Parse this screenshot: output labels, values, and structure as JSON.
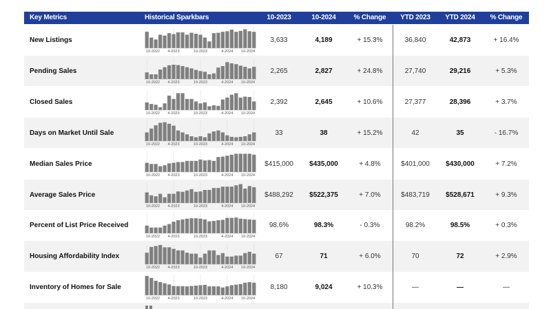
{
  "header": {
    "columns": [
      "Key Metrics",
      "Historical Sparkbars",
      "10-2023",
      "10-2024",
      "% Change",
      "YTD 2023",
      "YTD 2024",
      "% Change"
    ],
    "background": "#1f3f9a"
  },
  "spark_axis_labels": [
    "10-2022",
    "4-2023",
    "10-2023",
    "4-2024",
    "10-2024"
  ],
  "bar_color": "#808080",
  "rows": [
    {
      "label": "New Listings",
      "m2023": "3,633",
      "m2024": "4,189",
      "mchg": "+ 15.3%",
      "y2023": "36,840",
      "y2024": "42,873",
      "ychg": "+ 16.4%",
      "bars": [
        85,
        55,
        45,
        70,
        65,
        78,
        73,
        82,
        82,
        70,
        80,
        75,
        70,
        55,
        35,
        78,
        80,
        85,
        88,
        96,
        85,
        90,
        98,
        88,
        85
      ]
    },
    {
      "label": "Pending Sales",
      "m2023": "2,265",
      "m2024": "2,827",
      "mchg": "+ 24.8%",
      "y2023": "27,740",
      "y2024": "29,216",
      "ychg": "+ 5.3%",
      "bars": [
        35,
        25,
        25,
        50,
        62,
        72,
        75,
        73,
        68,
        62,
        56,
        48,
        42,
        38,
        25,
        30,
        60,
        68,
        88,
        82,
        78,
        70,
        64,
        56,
        64
      ]
    },
    {
      "label": "Closed Sales",
      "m2023": "2,392",
      "m2024": "2,645",
      "mchg": "+ 10.6%",
      "y2023": "27,377",
      "y2024": "28,396",
      "ychg": "+ 3.7%",
      "bars": [
        40,
        32,
        28,
        15,
        35,
        75,
        58,
        88,
        88,
        58,
        58,
        45,
        35,
        40,
        20,
        25,
        22,
        55,
        65,
        80,
        88,
        65,
        70,
        68,
        45
      ]
    },
    {
      "label": "Days on Market Until Sale",
      "m2023": "33",
      "m2024": "38",
      "mchg": "+ 15.2%",
      "y2023": "42",
      "y2024": "35",
      "ychg": "- 16.7%",
      "bars": [
        45,
        65,
        82,
        95,
        98,
        90,
        80,
        55,
        45,
        35,
        25,
        20,
        25,
        20,
        40,
        50,
        55,
        45,
        30,
        22,
        20,
        22,
        25,
        35,
        45
      ]
    },
    {
      "label": "Median Sales Price",
      "m2023": "$415,000",
      "m2024": "$435,000",
      "mchg": "+ 4.8%",
      "y2023": "$401,000",
      "y2024": "$430,000",
      "ychg": "+ 7.2%",
      "bars": [
        48,
        42,
        42,
        30,
        35,
        45,
        48,
        52,
        52,
        58,
        58,
        58,
        65,
        60,
        62,
        58,
        78,
        80,
        85,
        90,
        95,
        95,
        95,
        95,
        90
      ]
    },
    {
      "label": "Average Sales Price",
      "m2023": "$488,292",
      "m2024": "$522,375",
      "mchg": "+ 7.0%",
      "y2023": "$483,719",
      "y2024": "$528,671",
      "ychg": "+ 9.3%",
      "bars": [
        55,
        40,
        35,
        48,
        30,
        48,
        48,
        60,
        58,
        65,
        72,
        58,
        60,
        68,
        68,
        78,
        78,
        85,
        85,
        85,
        92,
        98,
        75,
        88,
        82
      ]
    },
    {
      "label": "Percent of List Price Received",
      "m2023": "98.6%",
      "m2024": "98.3%",
      "mchg": "- 0.3%",
      "y2023": "98.2%",
      "y2024": "98.5%",
      "ychg": "+ 0.3%",
      "bars": [
        40,
        30,
        30,
        30,
        40,
        48,
        60,
        68,
        72,
        76,
        78,
        78,
        76,
        72,
        62,
        64,
        68,
        70,
        80,
        80,
        82,
        76,
        74,
        72,
        70
      ]
    },
    {
      "label": "Housing Affordability Index",
      "m2023": "67",
      "m2024": "71",
      "mchg": "+ 6.0%",
      "y2023": "70",
      "y2024": "72",
      "ychg": "+ 2.9%",
      "bars": [
        60,
        90,
        95,
        100,
        88,
        88,
        80,
        72,
        72,
        60,
        55,
        55,
        35,
        55,
        72,
        72,
        48,
        58,
        40,
        40,
        45,
        45,
        58,
        65,
        55
      ]
    },
    {
      "label": "Inventory of Homes for Sale",
      "m2023": "8,180",
      "m2024": "9,024",
      "mchg": "+ 10.3%",
      "y2023": "—",
      "y2024": "—",
      "ychg": "—",
      "bars": [
        100,
        90,
        75,
        68,
        62,
        56,
        48,
        47,
        47,
        46,
        48,
        50,
        52,
        54,
        46,
        46,
        46,
        40,
        46,
        52,
        55,
        58,
        65,
        68,
        65
      ]
    }
  ]
}
